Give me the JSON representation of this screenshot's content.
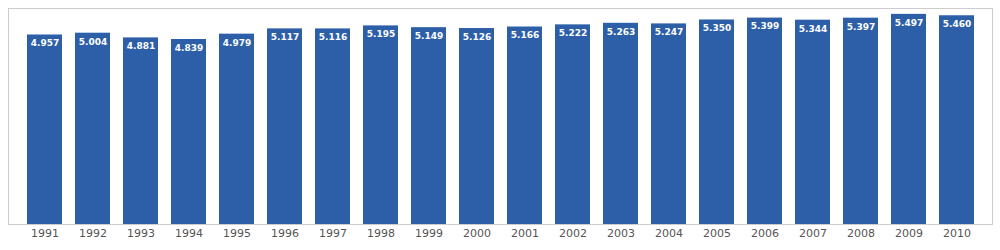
{
  "chart_data": {
    "type": "bar",
    "categories": [
      "1991",
      "1992",
      "1993",
      "1994",
      "1995",
      "1996",
      "1997",
      "1998",
      "1999",
      "2000",
      "2001",
      "2002",
      "2003",
      "2004",
      "2005",
      "2006",
      "2007",
      "2008",
      "2009",
      "2010"
    ],
    "values": [
      4.957,
      5.004,
      4.881,
      4.839,
      4.979,
      5.117,
      5.116,
      5.195,
      5.149,
      5.126,
      5.166,
      5.222,
      5.263,
      5.247,
      5.35,
      5.399,
      5.344,
      5.397,
      5.497,
      5.46
    ],
    "value_labels": [
      "4.957",
      "5.004",
      "4.881",
      "4.839",
      "4.979",
      "5.117",
      "5.116",
      "5.195",
      "5.149",
      "5.126",
      "5.166",
      "5.222",
      "5.263",
      "5.247",
      "5.350",
      "5.399",
      "5.344",
      "5.397",
      "5.497",
      "5.460"
    ],
    "color": "#2d5fa8",
    "ylim": [
      0,
      5.65
    ],
    "data_labels": true,
    "tick_labels": "x"
  }
}
